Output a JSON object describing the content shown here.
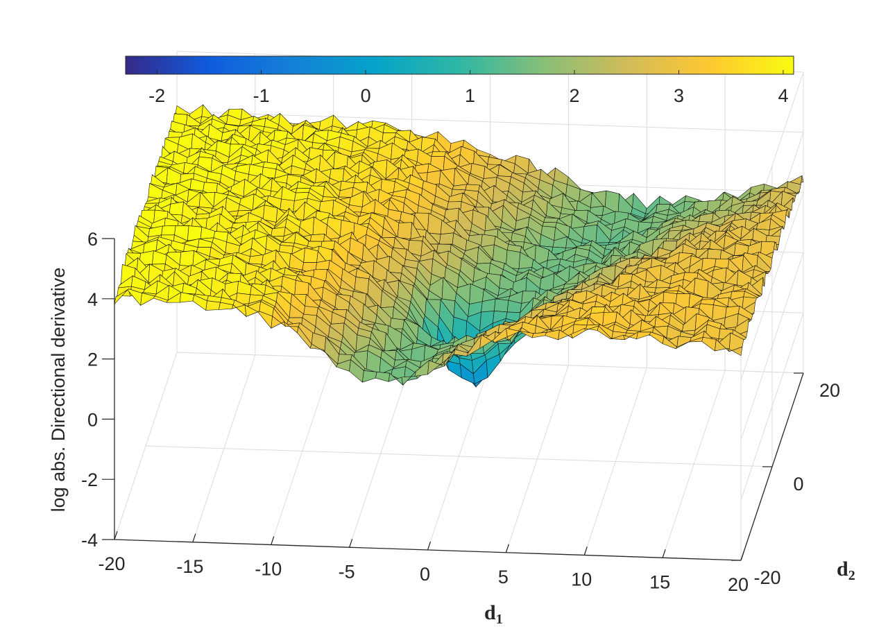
{
  "chart_data": {
    "type": "surface",
    "title": "",
    "xlabel": "d",
    "xlabel_subscript": "1",
    "ylabel": "d",
    "ylabel_subscript": "2",
    "zlabel": "log abs. Directional derivative",
    "x_range": [
      -20,
      20
    ],
    "y_range": [
      -20,
      20
    ],
    "zlim": [
      -4,
      6
    ],
    "x_ticks": [
      "-20",
      "-15",
      "-10",
      "-5",
      "0",
      "5",
      "10",
      "15",
      "20"
    ],
    "y_ticks": [
      "-20",
      "0",
      "20"
    ],
    "z_ticks": [
      "-4",
      "-2",
      "0",
      "2",
      "4",
      "6"
    ],
    "colorbar": {
      "location": "top",
      "range": [
        -2.3,
        4.1
      ],
      "ticks": [
        "-2",
        "-1",
        "0",
        "1",
        "2",
        "3",
        "4"
      ],
      "colormap": "parula",
      "colors": [
        "#352a87",
        "#0f5cdd",
        "#1481d6",
        "#06a4ca",
        "#2eb7a4",
        "#87bf77",
        "#d1bb59",
        "#fec832",
        "#f9fb0e"
      ]
    },
    "surface": {
      "description_values": {
        "plateau_at_d1_minus20": 4.1,
        "plateau_at_d1_plus20": 3.0,
        "back_edge_at_d2_plus20": 3.2,
        "valley_min_near_origin": -0.5,
        "valley_diagonal_floor": 0.3
      }
    },
    "grid": true,
    "mesh_edge_color": "#000000"
  }
}
